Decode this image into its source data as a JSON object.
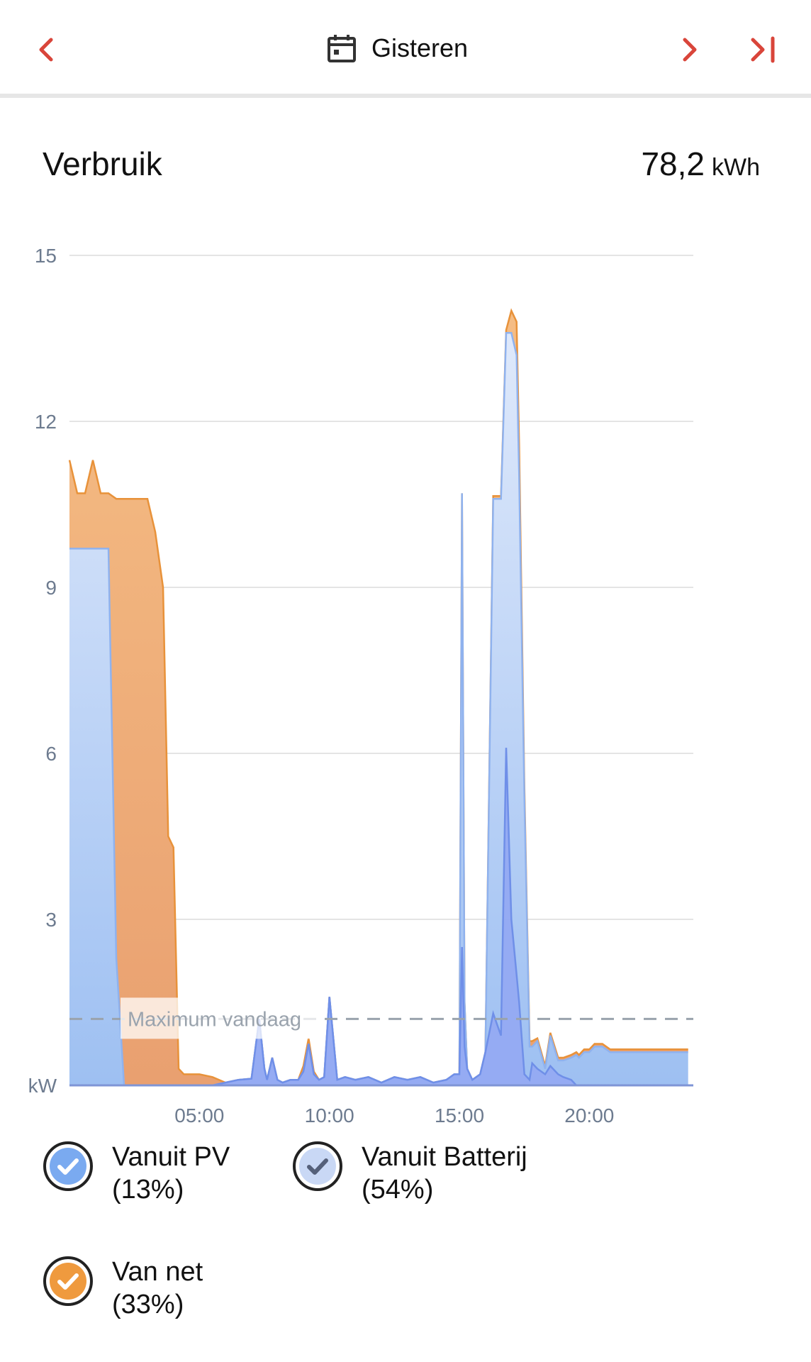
{
  "header": {
    "date_label": "Gisteren"
  },
  "card": {
    "title": "Verbruik",
    "total_value": "78,2",
    "total_unit": "kWh"
  },
  "legend": [
    {
      "id": "pv",
      "name": "Vanuit PV",
      "share": "(13%)",
      "color": "#7aaaf0"
    },
    {
      "id": "battery",
      "name": "Vanuit Batterij",
      "share": "(54%)",
      "color": "#c9d8f5"
    },
    {
      "id": "net",
      "name": "Van net",
      "share": "(33%)",
      "color": "#ef9a3e"
    }
  ],
  "colors": {
    "accent": "#d9453a",
    "grid": "#e4e4e4",
    "axis_text": "#6d7b8f"
  },
  "chart_data": {
    "type": "area",
    "stacked": true,
    "xlim": [
      0,
      24
    ],
    "ylim": [
      0,
      15
    ],
    "xticks": [
      5,
      10,
      15,
      20
    ],
    "xtick_labels": [
      "05:00",
      "10:00",
      "15:00",
      "20:00"
    ],
    "yticks": [
      3,
      6,
      9,
      12,
      15
    ],
    "ylabel": "kW",
    "grid": true,
    "reference_line": {
      "y": 1.2,
      "label": "Maximum vandaag"
    },
    "x": [
      0,
      0.3,
      0.6,
      0.9,
      1.2,
      1.5,
      1.8,
      2.1,
      2.4,
      2.7,
      3.0,
      3.3,
      3.6,
      3.8,
      4.0,
      4.2,
      4.4,
      4.7,
      5.0,
      5.5,
      6.0,
      6.5,
      7.0,
      7.3,
      7.5,
      7.6,
      7.8,
      8.0,
      8.2,
      8.5,
      8.8,
      9.0,
      9.2,
      9.4,
      9.6,
      9.8,
      10.0,
      10.3,
      10.6,
      11.0,
      11.5,
      12.0,
      12.5,
      13.0,
      13.5,
      14.0,
      14.5,
      14.8,
      15.0,
      15.1,
      15.2,
      15.3,
      15.5,
      15.8,
      16.0,
      16.3,
      16.6,
      16.8,
      17.0,
      17.2,
      17.3,
      17.5,
      17.7,
      17.8,
      18.0,
      18.3,
      18.5,
      18.8,
      19.0,
      19.3,
      19.5,
      19.6,
      19.8,
      20.0,
      20.2,
      20.5,
      20.8,
      21.0,
      21.3,
      21.6,
      22.0,
      22.5,
      23.0,
      23.5,
      23.8
    ],
    "series": [
      {
        "name": "Vanuit PV",
        "values": [
          0,
          0,
          0,
          0,
          0,
          0,
          0,
          0,
          0,
          0,
          0,
          0,
          0,
          0,
          0,
          0,
          0,
          0,
          0,
          0,
          0.05,
          0.1,
          0.12,
          1.2,
          0.3,
          0.1,
          0.5,
          0.1,
          0.05,
          0.1,
          0.1,
          0.25,
          0.75,
          0.2,
          0.1,
          0.15,
          1.6,
          0.1,
          0.15,
          0.1,
          0.15,
          0.05,
          0.15,
          0.1,
          0.15,
          0.05,
          0.1,
          0.2,
          0.2,
          2.5,
          0.7,
          0.3,
          0.1,
          0.2,
          0.6,
          1.3,
          0.9,
          6.1,
          3.0,
          2.0,
          1.5,
          0.2,
          0.1,
          0.4,
          0.3,
          0.2,
          0.35,
          0.2,
          0.15,
          0.1,
          0,
          0,
          0,
          0,
          0,
          0,
          0,
          0,
          0,
          0,
          0,
          0,
          0,
          0,
          0
        ]
      },
      {
        "name": "Vanuit Batterij",
        "values": [
          9.7,
          9.7,
          9.7,
          9.7,
          9.7,
          9.7,
          2.3,
          0,
          0,
          0,
          0,
          0,
          0,
          0,
          0,
          0,
          0,
          0,
          0,
          0,
          0,
          0,
          0,
          0,
          0,
          0,
          0,
          0,
          0,
          0,
          0,
          0,
          0,
          0,
          0,
          0,
          0,
          0,
          0,
          0,
          0,
          0,
          0,
          0,
          0,
          0,
          0,
          0,
          0,
          8.2,
          0.8,
          0,
          0,
          0,
          0,
          9.3,
          9.7,
          7.5,
          10.6,
          11.2,
          9.5,
          5.0,
          0.6,
          0.3,
          0.5,
          0.1,
          0.55,
          0.25,
          0.3,
          0.4,
          0.55,
          0.5,
          0.6,
          0.6,
          0.7,
          0.7,
          0.6,
          0.6,
          0.6,
          0.6,
          0.6,
          0.6,
          0.6,
          0.6,
          0.6
        ]
      },
      {
        "name": "Van net",
        "values": [
          1.6,
          1.0,
          1.0,
          1.6,
          1.0,
          1.0,
          8.3,
          10.6,
          10.6,
          10.6,
          10.6,
          10.0,
          9.0,
          4.5,
          4.3,
          0.3,
          0.2,
          0.2,
          0.2,
          0.15,
          0,
          0,
          0,
          0,
          0,
          0,
          0,
          0,
          0,
          0,
          0,
          0.1,
          0.1,
          0.05,
          0,
          0,
          0,
          0,
          0,
          0,
          0,
          0,
          0,
          0,
          0,
          0,
          0,
          0,
          0,
          0,
          0,
          0,
          0,
          0,
          0,
          0.05,
          0.05,
          0.05,
          0.4,
          0.6,
          0.6,
          0.2,
          0.1,
          0.1,
          0.05,
          0.05,
          0.05,
          0.05,
          0.05,
          0.05,
          0.05,
          0.05,
          0.05,
          0.05,
          0.05,
          0.05,
          0.05,
          0.05,
          0.05,
          0.05,
          0.05,
          0.05,
          0.05,
          0.05,
          0.05
        ]
      }
    ]
  }
}
